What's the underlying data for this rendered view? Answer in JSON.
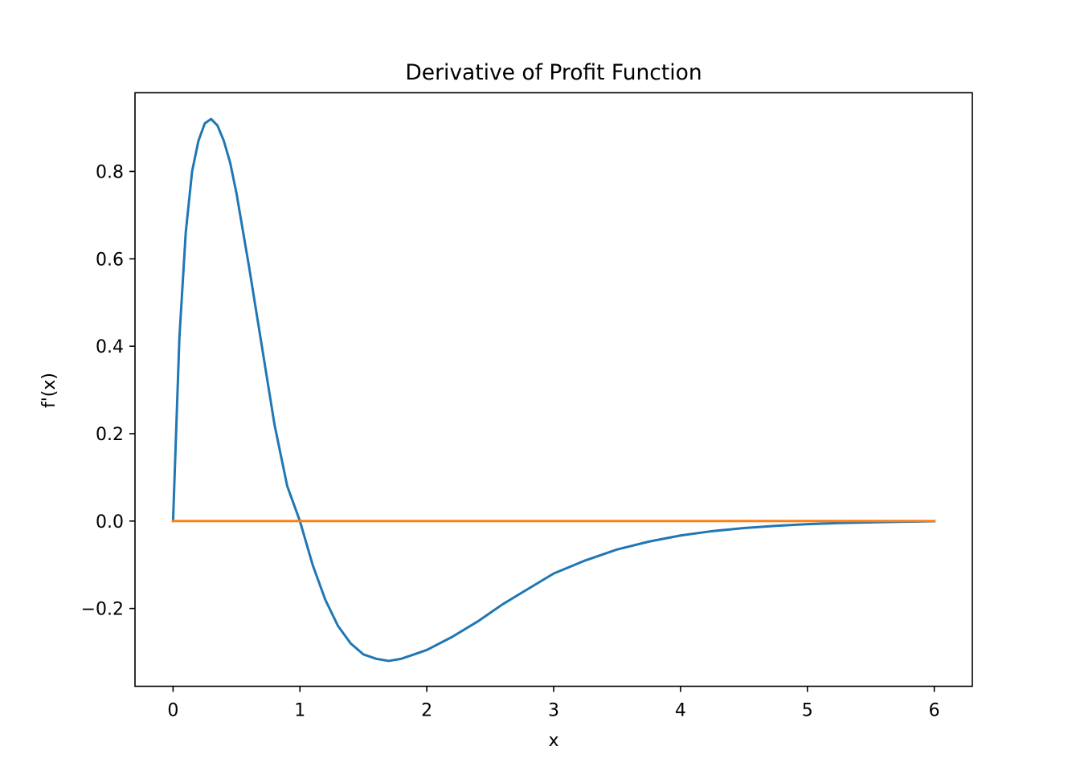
{
  "chart_data": {
    "type": "line",
    "title": "Derivative of Profit Function",
    "xlabel": "x",
    "ylabel": "f'(x)",
    "xlim": [
      -0.3,
      6.3
    ],
    "ylim": [
      -0.378,
      0.98
    ],
    "grid": false,
    "legend": "none",
    "x_ticks": [
      {
        "value": 0,
        "label": "0"
      },
      {
        "value": 1,
        "label": "1"
      },
      {
        "value": 2,
        "label": "2"
      },
      {
        "value": 3,
        "label": "3"
      },
      {
        "value": 4,
        "label": "4"
      },
      {
        "value": 5,
        "label": "5"
      },
      {
        "value": 6,
        "label": "6"
      }
    ],
    "y_ticks": [
      {
        "value": -0.2,
        "label": "−0.2"
      },
      {
        "value": 0.0,
        "label": "0.0"
      },
      {
        "value": 0.2,
        "label": "0.2"
      },
      {
        "value": 0.4,
        "label": "0.4"
      },
      {
        "value": 0.6,
        "label": "0.6"
      },
      {
        "value": 0.8,
        "label": "0.8"
      }
    ],
    "series": [
      {
        "color": "#1f77b4",
        "x": [
          0,
          0.05,
          0.1,
          0.15,
          0.2,
          0.25,
          0.3,
          0.35,
          0.4,
          0.45,
          0.5,
          0.6,
          0.7,
          0.8,
          0.9,
          1.0,
          1.1,
          1.2,
          1.3,
          1.4,
          1.5,
          1.6,
          1.7,
          1.8,
          1.9,
          2.0,
          2.2,
          2.4,
          2.6,
          2.8,
          3.0,
          3.25,
          3.5,
          3.75,
          4.0,
          4.25,
          4.5,
          4.75,
          5.0,
          5.25,
          5.5,
          5.75,
          6.0
        ],
        "y": [
          0,
          0.42,
          0.66,
          0.8,
          0.87,
          0.91,
          0.92,
          0.905,
          0.87,
          0.82,
          0.75,
          0.58,
          0.4,
          0.22,
          0.08,
          0.0,
          -0.1,
          -0.18,
          -0.24,
          -0.28,
          -0.305,
          -0.315,
          -0.32,
          -0.315,
          -0.305,
          -0.295,
          -0.265,
          -0.23,
          -0.19,
          -0.155,
          -0.12,
          -0.09,
          -0.065,
          -0.047,
          -0.033,
          -0.023,
          -0.016,
          -0.011,
          -0.007,
          -0.0045,
          -0.0028,
          -0.0015,
          -0.0005
        ]
      },
      {
        "color": "#ff7f0e",
        "x": [
          0,
          6
        ],
        "y": [
          0,
          0
        ]
      }
    ]
  }
}
